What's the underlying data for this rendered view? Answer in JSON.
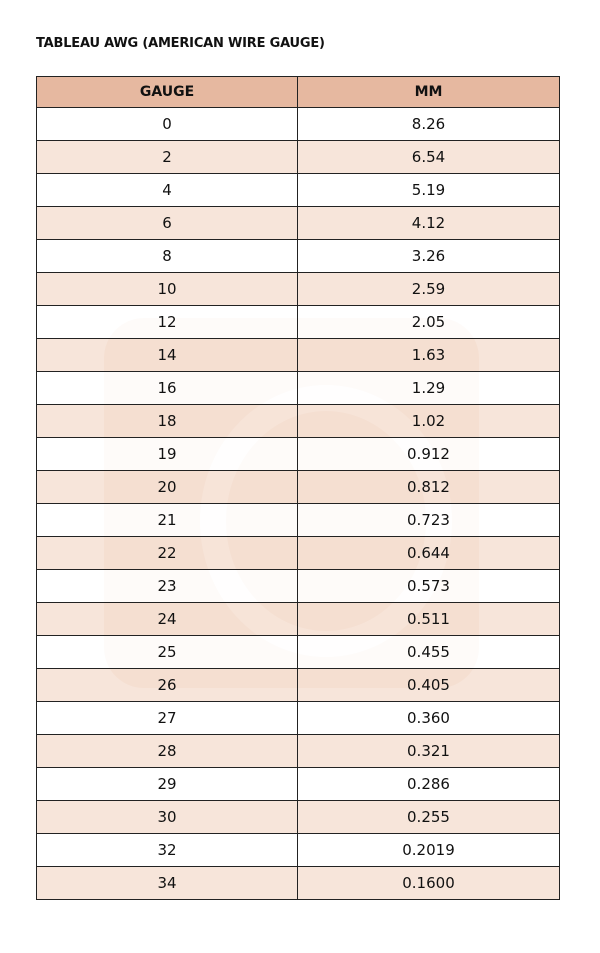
{
  "title": "TABLEAU AWG (AMERICAN WIRE GAUGE)",
  "colors": {
    "header": "#e6b8a0",
    "stripe": "#f5e2d7"
  },
  "table": {
    "headers": [
      "GAUGE",
      "MM"
    ],
    "rows": [
      [
        "0",
        "8.26"
      ],
      [
        "2",
        "6.54"
      ],
      [
        "4",
        "5.19"
      ],
      [
        "6",
        "4.12"
      ],
      [
        "8",
        "3.26"
      ],
      [
        "10",
        "2.59"
      ],
      [
        "12",
        "2.05"
      ],
      [
        "14",
        "1.63"
      ],
      [
        "16",
        "1.29"
      ],
      [
        "18",
        "1.02"
      ],
      [
        "19",
        "0.912"
      ],
      [
        "20",
        "0.812"
      ],
      [
        "21",
        "0.723"
      ],
      [
        "22",
        "0.644"
      ],
      [
        "23",
        "0.573"
      ],
      [
        "24",
        "0.511"
      ],
      [
        "25",
        "0.455"
      ],
      [
        "26",
        "0.405"
      ],
      [
        "27",
        "0.360"
      ],
      [
        "28",
        "0.321"
      ],
      [
        "29",
        "0.286"
      ],
      [
        "30",
        "0.255"
      ],
      [
        "32",
        "0.2019"
      ],
      [
        "34",
        "0.1600"
      ]
    ]
  }
}
